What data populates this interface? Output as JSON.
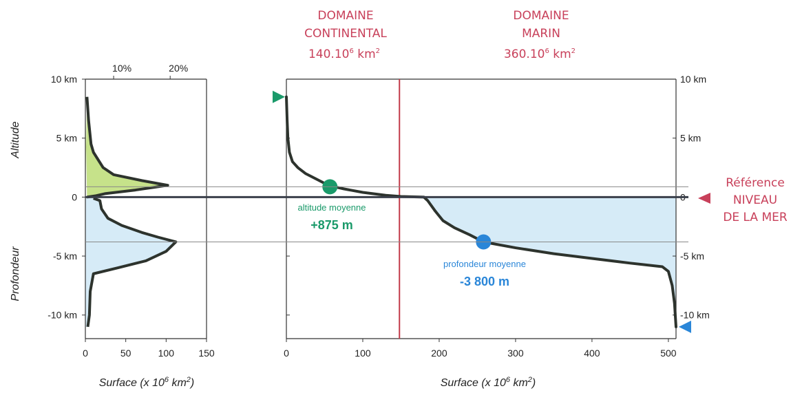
{
  "chart_data": [
    {
      "type": "area",
      "xlabel_main": "Surface (x 10",
      "xlabel_sup": "6",
      "xlabel_mid": " km",
      "xlabel_sup2": "2",
      "xlabel_end": ")",
      "ylabel_top": "Altitude",
      "ylabel_bottom": "Profondeur",
      "xlim": [
        0,
        150
      ],
      "ylim": [
        -12,
        10
      ],
      "x_ticks": [
        0,
        50,
        100,
        150
      ],
      "y_ticks": [
        {
          "value": 10,
          "label": "10 km"
        },
        {
          "value": 5,
          "label": "5 km"
        },
        {
          "value": 0,
          "label": "0"
        },
        {
          "value": -5,
          "label": "-5 km"
        },
        {
          "value": -10,
          "label": "-10 km"
        }
      ],
      "top_ticks": [
        {
          "value": 35,
          "label": "10%"
        },
        {
          "value": 105,
          "label": "20%"
        }
      ],
      "land_curve": [
        [
          2,
          8.5
        ],
        [
          4,
          6.5
        ],
        [
          7,
          4.5
        ],
        [
          10,
          3.8
        ],
        [
          22,
          2.5
        ],
        [
          35,
          1.9
        ],
        [
          70,
          1.4
        ],
        [
          102,
          1.0
        ],
        [
          62,
          0.6
        ],
        [
          25,
          0.3
        ],
        [
          12,
          0.1
        ],
        [
          2,
          0
        ]
      ],
      "ocean_curve": [
        [
          10,
          -0.1
        ],
        [
          18,
          -0.3
        ],
        [
          20,
          -1.0
        ],
        [
          28,
          -1.8
        ],
        [
          45,
          -2.4
        ],
        [
          70,
          -3.0
        ],
        [
          90,
          -3.4
        ],
        [
          112,
          -3.8
        ],
        [
          100,
          -4.6
        ],
        [
          75,
          -5.4
        ],
        [
          40,
          -6.0
        ],
        [
          10,
          -6.5
        ],
        [
          6,
          -8
        ],
        [
          5,
          -10
        ],
        [
          3,
          -11
        ]
      ]
    },
    {
      "type": "line",
      "xlim": [
        0,
        510
      ],
      "ylim": [
        -12,
        10
      ],
      "x_ticks": [
        0,
        100,
        200,
        300,
        400,
        500
      ],
      "y_ticks_left": [
        10,
        5,
        0,
        -5,
        -10
      ],
      "y_ticks_right": [
        {
          "value": 10,
          "label": "10 km"
        },
        {
          "value": 5,
          "label": "5 km"
        },
        {
          "value": 0,
          "label": "0"
        },
        {
          "value": -5,
          "label": "-5 km"
        },
        {
          "value": -10,
          "label": "-10 km"
        }
      ],
      "hypsometric_curve": [
        [
          0,
          8.5
        ],
        [
          1,
          6.5
        ],
        [
          2,
          5.0
        ],
        [
          4,
          3.8
        ],
        [
          8,
          3.0
        ],
        [
          15,
          2.5
        ],
        [
          25,
          2.0
        ],
        [
          40,
          1.5
        ],
        [
          55,
          1.0
        ],
        [
          75,
          0.7
        ],
        [
          100,
          0.4
        ],
        [
          130,
          0.15
        ],
        [
          150,
          0.05
        ],
        [
          180,
          0
        ],
        [
          185,
          -0.3
        ],
        [
          195,
          -1.2
        ],
        [
          205,
          -2.0
        ],
        [
          220,
          -2.6
        ],
        [
          240,
          -3.2
        ],
        [
          258,
          -3.8
        ],
        [
          300,
          -4.3
        ],
        [
          350,
          -4.8
        ],
        [
          400,
          -5.2
        ],
        [
          450,
          -5.6
        ],
        [
          492,
          -5.9
        ],
        [
          500,
          -6.3
        ],
        [
          505,
          -7.5
        ],
        [
          508,
          -9.0
        ],
        [
          510,
          -11.0
        ]
      ],
      "divider_x": 148,
      "mean_altitude": {
        "x": 57,
        "y": 0.875
      },
      "mean_depth": {
        "x": 258,
        "y": -3.8
      },
      "max_altitude_y": 8.5,
      "max_depth_y": -11.0
    }
  ],
  "headers": {
    "continental": {
      "line1": "DOMAINE",
      "line2": "CONTINENTAL",
      "line3a": "140.10",
      "line3sup": "6",
      "line3b": " km",
      "line3sup2": "2"
    },
    "marin": {
      "line1": "DOMAINE",
      "line2": "MARIN",
      "line3a": "360.10",
      "line3sup": "6",
      "line3b": " km",
      "line3sup2": "2"
    }
  },
  "annotations": {
    "altitude_label": "altitude moyenne",
    "altitude_value": "+875 m",
    "depth_label": "profondeur moyenne",
    "depth_value": "-3 800 m",
    "reference_line1": "Référence",
    "reference_line2": "NIVEAU",
    "reference_line3": "DE LA MER"
  },
  "colors": {
    "land_fill": "#c6e28a",
    "ocean_fill": "#d6ebf7",
    "curve": "#2d332d",
    "divider": "#c23a48",
    "header": "#c8405a",
    "green_marker": "#1a9a6a",
    "blue_marker": "#2a86d8"
  }
}
